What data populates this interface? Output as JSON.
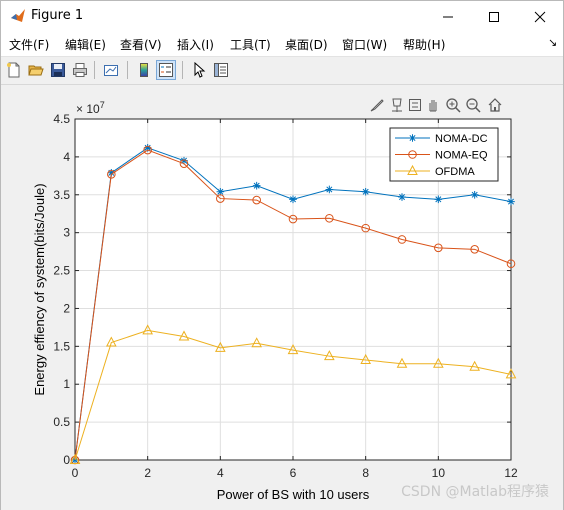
{
  "window": {
    "title": "Figure 1",
    "controls": {
      "minimize_icon": "minimize-icon",
      "maximize_icon": "maximize-icon",
      "close_icon": "close-icon"
    }
  },
  "menubar": {
    "items": [
      {
        "label": "文件(F)"
      },
      {
        "label": "编辑(E)"
      },
      {
        "label": "查看(V)"
      },
      {
        "label": "插入(I)"
      },
      {
        "label": "工具(T)"
      },
      {
        "label": "桌面(D)"
      },
      {
        "label": "窗口(W)"
      },
      {
        "label": "帮助(H)"
      }
    ],
    "overflow_glyph": "↘"
  },
  "toolbar": {
    "icons": [
      "new-figure-icon",
      "open-file-icon",
      "save-icon",
      "print-icon",
      "link-plot-icon",
      "colorbar-icon",
      "legend-icon",
      "pointer-icon",
      "property-inspector-icon"
    ]
  },
  "axes_toolbar": {
    "icons": [
      "brush-icon",
      "data-tips-icon",
      "pan-icon",
      "export-icon",
      "zoom-in-icon",
      "zoom-out-icon",
      "home-icon"
    ]
  },
  "chart_data": {
    "type": "line",
    "title": "",
    "xlabel": "Power of BS with 10 users",
    "ylabel": "Energy effiency of system(bits/Joule)",
    "exponent_label": "× 10",
    "exponent_power": "7",
    "xlim": [
      0,
      12
    ],
    "ylim": [
      0,
      4.5
    ],
    "x_ticks": [
      "0",
      "2",
      "4",
      "6",
      "8",
      "10",
      "12"
    ],
    "y_ticks": [
      "0",
      "0.5",
      "1",
      "1.5",
      "2",
      "2.5",
      "3",
      "3.5",
      "4",
      "4.5"
    ],
    "grid": true,
    "legend_position": "top-right",
    "x": [
      0,
      1,
      2,
      3,
      4,
      5,
      6,
      7,
      8,
      9,
      10,
      11,
      12
    ],
    "series": [
      {
        "name": "NOMA-DC",
        "color": "#0072bd",
        "marker": "star",
        "values": [
          0,
          3.79,
          4.12,
          3.95,
          3.54,
          3.62,
          3.44,
          3.57,
          3.54,
          3.47,
          3.44,
          3.5,
          3.41
        ]
      },
      {
        "name": "NOMA-EQ",
        "color": "#d95319",
        "marker": "circle",
        "values": [
          0,
          3.77,
          4.09,
          3.91,
          3.45,
          3.43,
          3.18,
          3.19,
          3.06,
          2.91,
          2.8,
          2.78,
          2.59
        ]
      },
      {
        "name": "OFDMA",
        "color": "#edb120",
        "marker": "triangle",
        "values": [
          0,
          1.55,
          1.71,
          1.63,
          1.48,
          1.54,
          1.45,
          1.37,
          1.32,
          1.27,
          1.27,
          1.23,
          1.13
        ]
      }
    ]
  },
  "watermark": "CSDN @Matlab程序猿"
}
